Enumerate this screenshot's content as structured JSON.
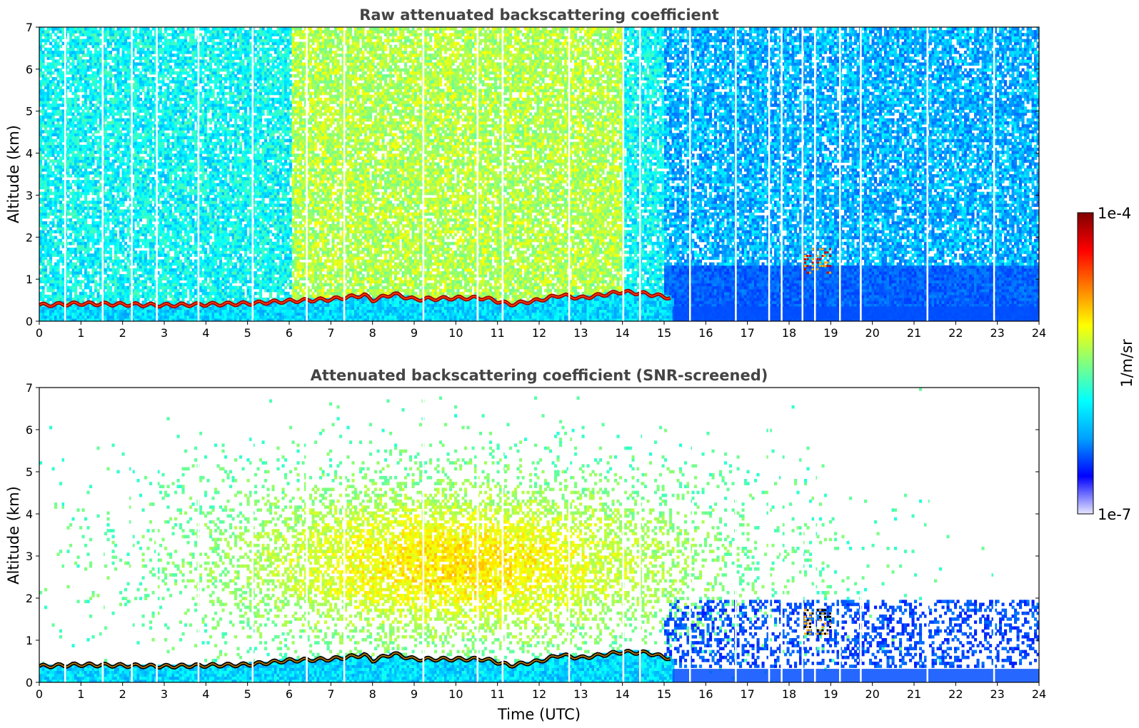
{
  "chart_data": [
    {
      "type": "heatmap",
      "title": "Raw attenuated backscattering coefficient",
      "xlabel": "",
      "ylabel": "Altitude (km)",
      "xlim": [
        0,
        24
      ],
      "ylim": [
        0,
        7
      ],
      "x_ticks": [
        "0",
        "1",
        "2",
        "3",
        "4",
        "5",
        "6",
        "7",
        "8",
        "9",
        "10",
        "11",
        "12",
        "13",
        "14",
        "15",
        "16",
        "17",
        "18",
        "19",
        "20",
        "21",
        "22",
        "23",
        "24"
      ],
      "y_ticks": [
        "0",
        "1",
        "2",
        "3",
        "4",
        "5",
        "6",
        "7"
      ],
      "boundary_layer_top_km": [
        {
          "t": 0,
          "h": 0.38
        },
        {
          "t": 1,
          "h": 0.42
        },
        {
          "t": 2,
          "h": 0.4
        },
        {
          "t": 3,
          "h": 0.38
        },
        {
          "t": 4,
          "h": 0.4
        },
        {
          "t": 5,
          "h": 0.42
        },
        {
          "t": 6,
          "h": 0.48
        },
        {
          "t": 7,
          "h": 0.52
        },
        {
          "t": 7.8,
          "h": 0.62
        },
        {
          "t": 8,
          "h": 0.5
        },
        {
          "t": 8.5,
          "h": 0.65
        },
        {
          "t": 9,
          "h": 0.52
        },
        {
          "t": 10,
          "h": 0.55
        },
        {
          "t": 10.7,
          "h": 0.55
        },
        {
          "t": 11.3,
          "h": 0.4
        },
        {
          "t": 12,
          "h": 0.5
        },
        {
          "t": 12.5,
          "h": 0.62
        },
        {
          "t": 13,
          "h": 0.55
        },
        {
          "t": 14,
          "h": 0.7
        },
        {
          "t": 14.6,
          "h": 0.65
        },
        {
          "t": 15.2,
          "h": 0.55
        }
      ],
      "elevated_feature": {
        "t_start": 18.3,
        "t_end": 19.0,
        "h_low": 1.1,
        "h_high": 1.7
      }
    },
    {
      "type": "heatmap",
      "title": "Attenuated backscattering coefficient (SNR-screened)",
      "xlabel": "Time (UTC)",
      "ylabel": "Altitude (km)",
      "xlim": [
        0,
        24
      ],
      "ylim": [
        0,
        7
      ],
      "x_ticks": [
        "0",
        "1",
        "2",
        "3",
        "4",
        "5",
        "6",
        "7",
        "8",
        "9",
        "10",
        "11",
        "12",
        "13",
        "14",
        "15",
        "16",
        "17",
        "18",
        "19",
        "20",
        "21",
        "22",
        "23",
        "24"
      ],
      "y_ticks": [
        "0",
        "1",
        "2",
        "3",
        "4",
        "5",
        "6",
        "7"
      ],
      "boundary_layer_top_km": [
        {
          "t": 0,
          "h": 0.38
        },
        {
          "t": 1,
          "h": 0.42
        },
        {
          "t": 2,
          "h": 0.4
        },
        {
          "t": 3,
          "h": 0.38
        },
        {
          "t": 4,
          "h": 0.4
        },
        {
          "t": 5,
          "h": 0.42
        },
        {
          "t": 6,
          "h": 0.52
        },
        {
          "t": 7,
          "h": 0.55
        },
        {
          "t": 7.8,
          "h": 0.65
        },
        {
          "t": 8,
          "h": 0.52
        },
        {
          "t": 8.5,
          "h": 0.68
        },
        {
          "t": 9,
          "h": 0.55
        },
        {
          "t": 10,
          "h": 0.55
        },
        {
          "t": 10.7,
          "h": 0.55
        },
        {
          "t": 11.3,
          "h": 0.4
        },
        {
          "t": 12,
          "h": 0.5
        },
        {
          "t": 12.5,
          "h": 0.65
        },
        {
          "t": 13,
          "h": 0.58
        },
        {
          "t": 14,
          "h": 0.72
        },
        {
          "t": 14.6,
          "h": 0.7
        },
        {
          "t": 15.2,
          "h": 0.55
        }
      ],
      "elevated_feature": {
        "t_start": 18.3,
        "t_end": 19.0,
        "h_low": 1.1,
        "h_high": 1.7
      }
    }
  ],
  "colorbar": {
    "label": "1/m/sr",
    "max_label": "1e-4",
    "min_label": "1e-7",
    "colormap": "jet",
    "colors": [
      "#e6e6ff",
      "#0000ff",
      "#00a0ff",
      "#00ffff",
      "#80ff80",
      "#ffff00",
      "#ff8000",
      "#ff0000",
      "#800000"
    ]
  }
}
